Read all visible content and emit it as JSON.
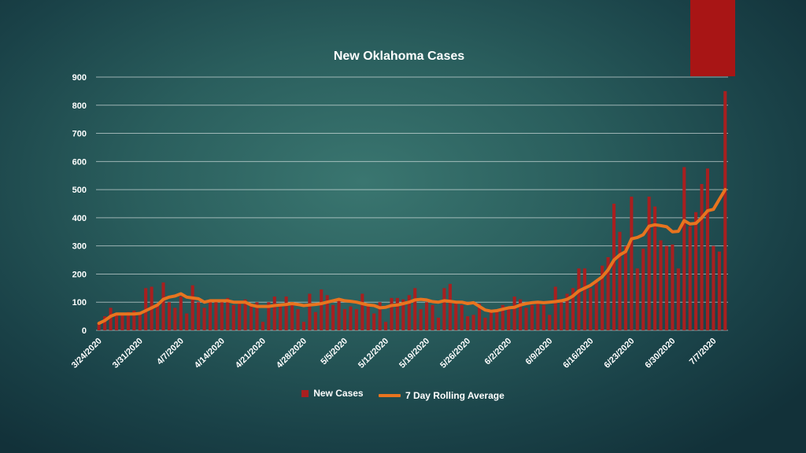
{
  "chart_data": {
    "type": "bar",
    "title": "New Oklahoma Cases",
    "xlabel": "",
    "ylabel": "",
    "ylim": [
      0,
      900
    ],
    "yticks": [
      0,
      100,
      200,
      300,
      400,
      500,
      600,
      700,
      800,
      900
    ],
    "x_tick_labels": [
      "3/24/2020",
      "3/31/2020",
      "4/7/2020",
      "4/14/2020",
      "4/21/2020",
      "4/28/2020",
      "5/5/2020",
      "5/12/2020",
      "5/19/2020",
      "5/26/2020",
      "6/2/2020",
      "6/9/2020",
      "6/16/2020",
      "6/23/2020",
      "6/30/2020",
      "7/7/2020"
    ],
    "x_tick_day_index": [
      0,
      7,
      14,
      21,
      28,
      35,
      42,
      49,
      56,
      63,
      70,
      77,
      84,
      91,
      98,
      105
    ],
    "grid": true,
    "legend_position": "bottom",
    "series": [
      {
        "name": "New Cases",
        "type": "bar",
        "color": "#a81f1f",
        "values": [
          25,
          50,
          80,
          60,
          60,
          65,
          70,
          60,
          150,
          155,
          95,
          170,
          100,
          80,
          120,
          60,
          160,
          100,
          80,
          100,
          110,
          100,
          115,
          90,
          100,
          110,
          85,
          100,
          30,
          100,
          120,
          85,
          120,
          100,
          75,
          30,
          130,
          65,
          145,
          125,
          90,
          115,
          75,
          85,
          75,
          130,
          90,
          60,
          100,
          30,
          115,
          115,
          110,
          125,
          150,
          75,
          100,
          90,
          45,
          150,
          165,
          100,
          90,
          50,
          55,
          95,
          45,
          70,
          75,
          90,
          80,
          120,
          110,
          80,
          90,
          100,
          90,
          55,
          155,
          100,
          130,
          150,
          220,
          220,
          150,
          170,
          230,
          260,
          450,
          350,
          300,
          475,
          220,
          290,
          475,
          440,
          320,
          300,
          305,
          220,
          580,
          370,
          420,
          520,
          575,
          300,
          280,
          850
        ]
      },
      {
        "name": "7 Day Rolling Average",
        "type": "line",
        "color": "#e8741f",
        "values": [
          25,
          35,
          50,
          58,
          58,
          58,
          58,
          60,
          70,
          80,
          90,
          110,
          118,
          122,
          130,
          118,
          115,
          112,
          100,
          105,
          105,
          105,
          105,
          100,
          100,
          100,
          90,
          85,
          85,
          85,
          88,
          90,
          92,
          95,
          92,
          88,
          90,
          92,
          95,
          100,
          105,
          110,
          105,
          103,
          100,
          95,
          90,
          88,
          80,
          82,
          88,
          90,
          95,
          100,
          108,
          110,
          108,
          102,
          100,
          105,
          103,
          100,
          100,
          95,
          98,
          85,
          72,
          68,
          70,
          75,
          80,
          82,
          90,
          95,
          98,
          100,
          98,
          100,
          102,
          105,
          110,
          122,
          140,
          150,
          160,
          175,
          190,
          215,
          250,
          268,
          280,
          325,
          330,
          340,
          370,
          375,
          372,
          368,
          350,
          352,
          390,
          378,
          380,
          400,
          425,
          430,
          465,
          500
        ]
      }
    ]
  }
}
